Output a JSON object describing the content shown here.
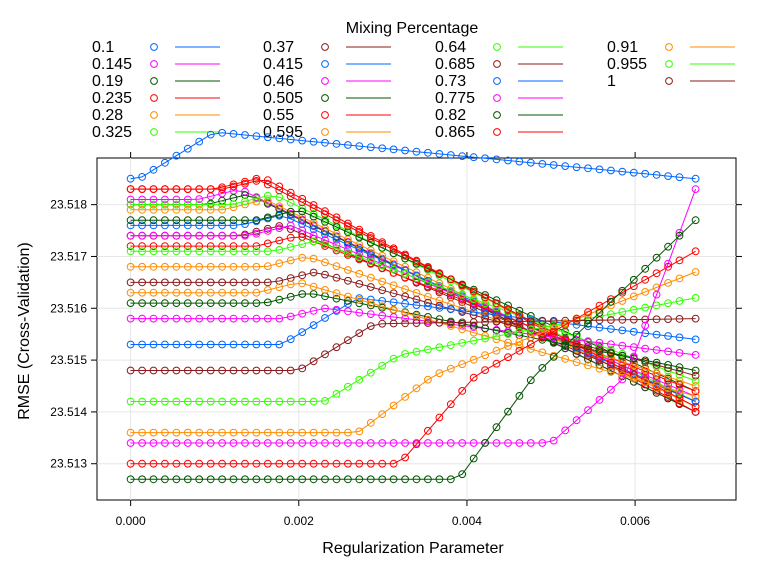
{
  "chart_data": {
    "type": "line",
    "title": "",
    "legend_title": "Mixing Percentage",
    "legend_placement": "top",
    "xlabel": "Regularization Parameter",
    "ylabel": "RMSE (Cross-Validation)",
    "xlim": [
      -0.0004,
      0.0072
    ],
    "ylim": [
      23.5123,
      23.5189
    ],
    "x_ticks": [
      0.0,
      0.002,
      0.004,
      0.006
    ],
    "x_tick_labels": [
      "0.000",
      "0.002",
      "0.004",
      "0.006"
    ],
    "y_ticks": [
      23.513,
      23.514,
      23.515,
      23.516,
      23.517,
      23.518
    ],
    "y_tick_labels": [
      "23.513",
      "23.514",
      "23.515",
      "23.516",
      "23.517",
      "23.518"
    ],
    "grid": true,
    "x": [
      0.0,
      0.000136,
      0.000272,
      0.000408,
      0.000544,
      0.00068,
      0.000816,
      0.000952,
      0.001088,
      0.001224,
      0.00136,
      0.001496,
      0.001632,
      0.001768,
      0.001904,
      0.00204,
      0.002176,
      0.002312,
      0.002448,
      0.002584,
      0.00272,
      0.002856,
      0.002992,
      0.003128,
      0.003264,
      0.0034,
      0.003536,
      0.003672,
      0.003808,
      0.003944,
      0.00408,
      0.004216,
      0.004352,
      0.004488,
      0.004624,
      0.00476,
      0.004896,
      0.005032,
      0.005168,
      0.005304,
      0.00544,
      0.005576,
      0.005712,
      0.005848,
      0.005984,
      0.00612,
      0.006256,
      0.006392,
      0.006528,
      0.00672
    ],
    "series": [
      {
        "name": "0.1",
        "color": "#0066ff",
        "y0": 23.5185,
        "thr": 0.0001,
        "yend": 23.5185
      },
      {
        "name": "0.145",
        "color": "#ff00ff",
        "y0": 23.5181,
        "thr": 0.0008,
        "yend": 23.514
      },
      {
        "name": "0.19",
        "color": "#005500",
        "y0": 23.518,
        "thr": 0.0009,
        "yend": 23.514
      },
      {
        "name": "0.235",
        "color": "#ff0000",
        "y0": 23.5183,
        "thr": 0.0011,
        "yend": 23.514
      },
      {
        "name": "0.28",
        "color": "#ff8c00",
        "y0": 23.5179,
        "thr": 0.0011,
        "yend": 23.5141
      },
      {
        "name": "0.325",
        "color": "#33ff00",
        "y0": 23.518,
        "thr": 0.0012,
        "yend": 23.5142
      },
      {
        "name": "0.37",
        "color": "#8b1a1a",
        "y0": 23.5174,
        "thr": 0.0013,
        "yend": 23.5142
      },
      {
        "name": "0.415",
        "color": "#0066ff",
        "y0": 23.5176,
        "thr": 0.0013,
        "yend": 23.5142
      },
      {
        "name": "0.46",
        "color": "#ff00ff",
        "y0": 23.5174,
        "thr": 0.0014,
        "yend": 23.5143
      },
      {
        "name": "0.505",
        "color": "#005500",
        "y0": 23.5177,
        "thr": 0.0015,
        "yend": 23.5144
      },
      {
        "name": "0.55",
        "color": "#ff0000",
        "y0": 23.5172,
        "thr": 0.0015,
        "yend": 23.5144
      },
      {
        "name": "0.595",
        "color": "#ff8c00",
        "y0": 23.5168,
        "thr": 0.0016,
        "yend": 23.5145
      },
      {
        "name": "0.64",
        "color": "#33ff00",
        "y0": 23.5171,
        "thr": 0.0017,
        "yend": 23.5146
      },
      {
        "name": "0.685",
        "color": "#8b1a1a",
        "y0": 23.5165,
        "thr": 0.0017,
        "yend": 23.5147
      },
      {
        "name": "0.73",
        "color": "#0066ff",
        "y0": 23.5153,
        "thr": 0.0018,
        "yend": 23.5154
      },
      {
        "name": "0.775",
        "color": "#ff00ff",
        "y0": 23.5158,
        "thr": 0.0018,
        "yend": 23.5151
      },
      {
        "name": "0.82",
        "color": "#005500",
        "y0": 23.5161,
        "thr": 0.0016,
        "yend": 23.5148
      },
      {
        "name": "0.865",
        "color": "#ff0000",
        "y0": 23.5183,
        "thr": 0.001,
        "yend": 23.5141
      },
      {
        "name": "0.91",
        "color": "#ff8c00",
        "y0": 23.5163,
        "thr": 0.0015,
        "yend": 23.5143
      },
      {
        "name": "0.955",
        "color": "#33ff00",
        "y0": 23.5142,
        "thr": 0.0023,
        "yend": 23.5162
      },
      {
        "name": "1",
        "color": "#8b1a1a",
        "y0": 23.5148,
        "thr": 0.002,
        "yend": 23.5158
      }
    ],
    "series_lower": [
      {
        "color": "#ff8c00",
        "y0": 23.5136,
        "thr": 0.0027,
        "yend": 23.5167
      },
      {
        "color": "#ff00ff",
        "y0": 23.5134,
        "thr": 0.005,
        "yend": 23.5183
      },
      {
        "color": "#ff0000",
        "y0": 23.513,
        "thr": 0.0032,
        "yend": 23.5171
      },
      {
        "color": "#005500",
        "y0": 23.5127,
        "thr": 0.0039,
        "yend": 23.5177
      }
    ]
  }
}
